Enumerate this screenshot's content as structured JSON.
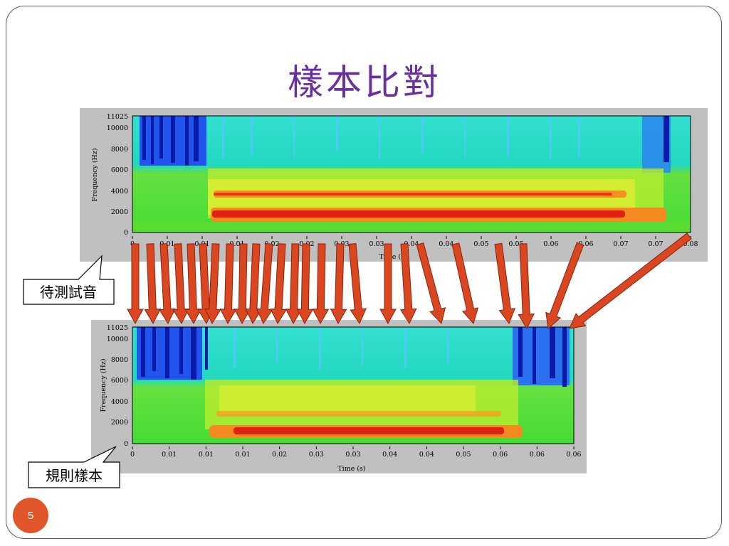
{
  "slide": {
    "title": "樣本比對",
    "page_number": "5"
  },
  "test_spectrogram": {
    "callout_label": "待測試音",
    "y_axis_label": "Frequency (Hz)",
    "x_axis_label": "Time (s)",
    "y_ticks": [
      "11025",
      "10000",
      "8000",
      "6000",
      "4000",
      "2000",
      "0"
    ],
    "x_ticks": [
      "0",
      "0.01",
      "0.01",
      "0.01",
      "0.02",
      "0.02",
      "0.03",
      "0.03",
      "0.04",
      "0.04",
      "0.05",
      "0.05",
      "0.06",
      "0.06",
      "0.07",
      "0.07",
      "0.08"
    ]
  },
  "reference_spectrogram": {
    "callout_label": "規則樣本",
    "y_axis_label": "Frequency (Hz)",
    "x_axis_label": "Time (s)",
    "y_ticks": [
      "11025",
      "10000",
      "8000",
      "6000",
      "4000",
      "2000",
      "0"
    ],
    "x_ticks": [
      "0",
      "0.01",
      "0.01",
      "0.01",
      "0.02",
      "0.03",
      "0.03",
      "0.04",
      "0.04",
      "0.05",
      "0.06",
      "0.06",
      "0.06"
    ]
  },
  "colors": {
    "title": "#6a2fa0",
    "arrow_fill": "#d9461f",
    "arrow_stroke": "#8a2410",
    "page_badge": "#e0562a"
  },
  "warping_arrows": {
    "count": 25,
    "description_source": "alignment arrows between test and reference spectrograms"
  }
}
